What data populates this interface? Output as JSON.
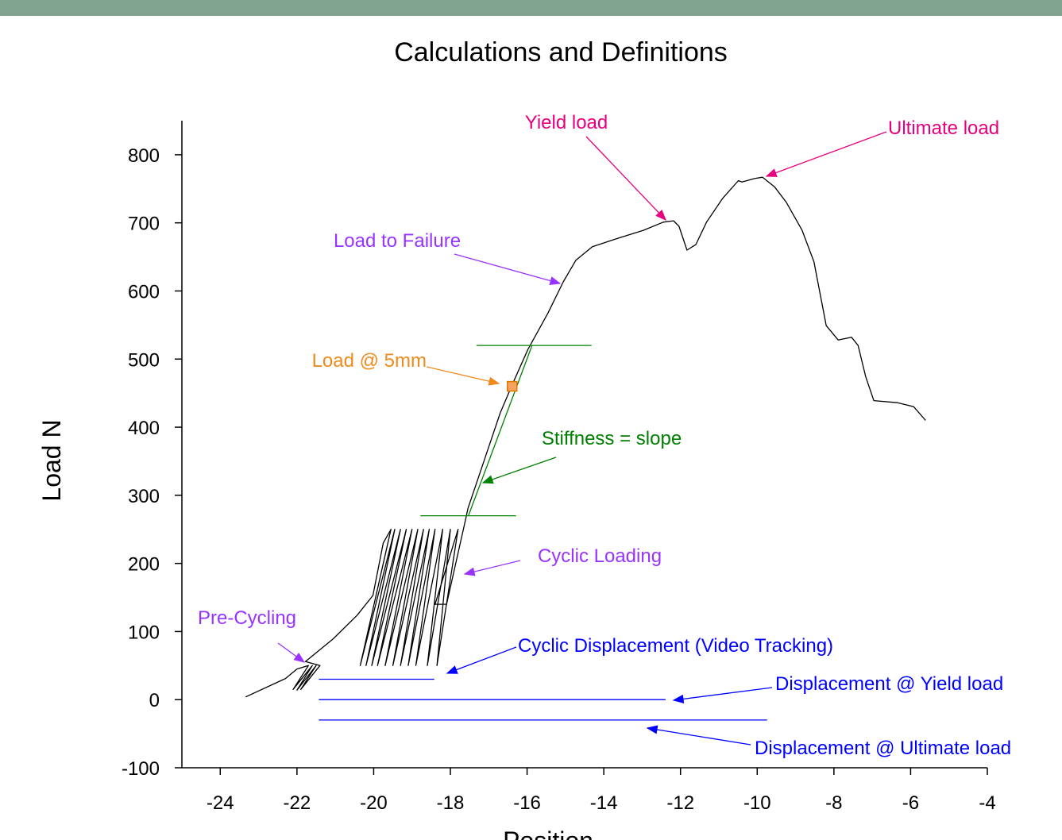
{
  "chart_data": {
    "type": "line",
    "title": "Calculations and Definitions",
    "x_label": "Position",
    "y_label": "Load N",
    "xlim": [
      -25,
      -4
    ],
    "ylim": [
      -100,
      850
    ],
    "xticks": [
      -24,
      -22,
      -20,
      -18,
      -16,
      -14,
      -12,
      -10,
      -8,
      -6,
      -4
    ],
    "yticks": [
      -100,
      0,
      100,
      200,
      300,
      400,
      500,
      600,
      700,
      800
    ],
    "series": [
      {
        "color": "#000000",
        "x": [
          -23.34,
          -22.3,
          -22.0,
          -21.7,
          -22.1,
          -21.6,
          -22.0,
          -21.5,
          -21.9,
          -21.4,
          -21.78,
          -21.06,
          -20.43,
          -20.02,
          -19.75,
          -19.55,
          -20.35,
          -19.45,
          -20.2,
          -19.3,
          -20.05,
          -19.15,
          -19.9,
          -19.0,
          -19.7,
          -18.85,
          -19.5,
          -18.7,
          -19.3,
          -18.55,
          -19.1,
          -18.4,
          -18.9,
          -18.2,
          -18.6,
          -18.0,
          -18.35,
          -17.8,
          -18.4,
          -18.1,
          -17.63,
          -17.54,
          -17.12,
          -16.7,
          -16.39,
          -15.98,
          -15.46,
          -15.05,
          -14.73,
          -14.3,
          -13.6,
          -12.97,
          -12.45,
          -12.18,
          -12.04,
          -11.83,
          -11.6,
          -11.32,
          -10.9,
          -10.49,
          -10.4,
          -10.07,
          -9.86,
          -9.55,
          -9.24,
          -8.83,
          -8.52,
          -8.2,
          -7.89,
          -7.54,
          -7.37,
          -7.17,
          -6.96,
          -6.34,
          -5.92,
          -5.61
        ],
        "values": [
          4,
          31,
          45,
          50,
          15,
          50,
          14,
          50,
          15,
          50,
          56,
          89,
          124,
          153,
          230,
          250,
          50,
          250,
          50,
          250,
          50,
          250,
          50,
          250,
          50,
          250,
          50,
          250,
          50,
          250,
          50,
          250,
          50,
          250,
          50,
          250,
          50,
          250,
          140,
          140,
          258,
          281,
          351,
          421,
          462,
          514,
          567,
          614,
          645,
          665,
          678,
          689,
          701,
          703,
          695,
          660,
          668,
          701,
          736,
          762,
          760,
          765,
          767,
          753,
          730,
          689,
          643,
          549,
          528,
          532,
          520,
          474,
          439,
          436,
          430,
          410
        ]
      },
      {
        "color": "#008000",
        "x": [
          -17.53,
          -15.87
        ],
        "values": [
          270,
          520
        ]
      },
      {
        "color": "#008000",
        "x": [
          -17.32,
          -14.32
        ],
        "values": [
          520,
          520
        ]
      },
      {
        "color": "#008000",
        "x": [
          -18.78,
          -16.29
        ],
        "values": [
          270,
          270
        ]
      },
      {
        "color": "#0000ff",
        "x": [
          -21.43,
          -18.42
        ],
        "values": [
          30,
          30
        ]
      },
      {
        "color": "#0000ff",
        "x": [
          -21.43,
          -12.39
        ],
        "values": [
          0,
          0
        ]
      },
      {
        "color": "#0000ff",
        "x": [
          -21.43,
          -9.74
        ],
        "values": [
          -30,
          -30
        ]
      }
    ],
    "marker": {
      "color": "#f4a460",
      "x": -16.39,
      "value": 460
    },
    "annotations": [
      {
        "text": "Yield load",
        "color": "#e6007e"
      },
      {
        "text": "Ultimate load",
        "color": "#e6007e"
      },
      {
        "text": "Load to Failure",
        "color": "#9933ff"
      },
      {
        "text": "Load @ 5mm",
        "color": "#f08a1c"
      },
      {
        "text": "Stiffness = slope",
        "color": "#008000"
      },
      {
        "text": "Cyclic Loading",
        "color": "#9933ff"
      },
      {
        "text": "Pre-Cycling",
        "color": "#9933ff"
      },
      {
        "text": "Cyclic Displacement (Video Tracking)",
        "color": "#0000ff"
      },
      {
        "text": "Displacement @ Yield load",
        "color": "#0000ff"
      },
      {
        "text": "Displacement @ Ultimate load",
        "color": "#0000ff"
      }
    ]
  }
}
